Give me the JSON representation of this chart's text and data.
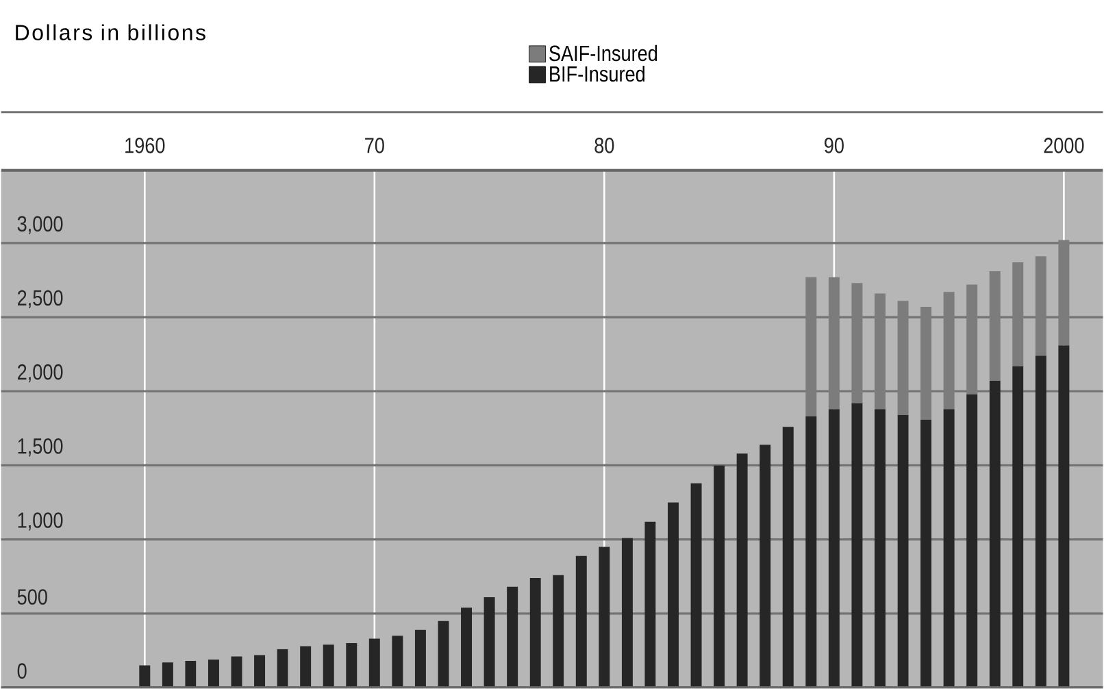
{
  "chart_data": {
    "type": "bar",
    "stacked": true,
    "ylabel": "Dollars in billions",
    "x": [
      1960,
      1961,
      1962,
      1963,
      1964,
      1965,
      1966,
      1967,
      1968,
      1969,
      1970,
      1971,
      1972,
      1973,
      1974,
      1975,
      1976,
      1977,
      1978,
      1979,
      1980,
      1981,
      1982,
      1983,
      1984,
      1985,
      1986,
      1987,
      1988,
      1989,
      1990,
      1991,
      1992,
      1993,
      1994,
      1995,
      1996,
      1997,
      1998,
      1999,
      2000
    ],
    "series": [
      {
        "name": "BIF-Insured",
        "color": "#262626",
        "values": [
          150,
          170,
          180,
          190,
          210,
          220,
          260,
          280,
          290,
          300,
          330,
          350,
          390,
          450,
          540,
          610,
          680,
          740,
          760,
          890,
          950,
          1010,
          1120,
          1250,
          1380,
          1500,
          1580,
          1640,
          1760,
          1830,
          1880,
          1920,
          1880,
          1840,
          1810,
          1880,
          1980,
          2070,
          2170,
          2240,
          2310
        ]
      },
      {
        "name": "SAIF-Insured",
        "color": "#7c7c7c",
        "values": [
          null,
          null,
          null,
          null,
          null,
          null,
          null,
          null,
          null,
          null,
          null,
          null,
          null,
          null,
          null,
          null,
          null,
          null,
          null,
          null,
          null,
          null,
          null,
          null,
          null,
          null,
          null,
          null,
          null,
          940,
          890,
          810,
          780,
          770,
          760,
          790,
          740,
          740,
          700,
          670,
          710
        ]
      }
    ],
    "xlim": [
      1953.75,
      2001.7
    ],
    "xticks": [
      1960,
      {
        "value": 1970,
        "label": "70"
      },
      {
        "value": 1980,
        "label": "80"
      },
      {
        "value": 1990,
        "label": "90"
      },
      2000
    ],
    "ylim": [
      0,
      3500
    ],
    "yticks": [
      0,
      500,
      {
        "value": 1000,
        "label": "1,000"
      },
      {
        "value": 1500,
        "label": "1,500"
      },
      {
        "value": 2000,
        "label": "2,000"
      },
      {
        "value": 2500,
        "label": "2,500"
      },
      {
        "value": 3000,
        "label": "3,000"
      }
    ],
    "grid": true,
    "legend": "top"
  }
}
